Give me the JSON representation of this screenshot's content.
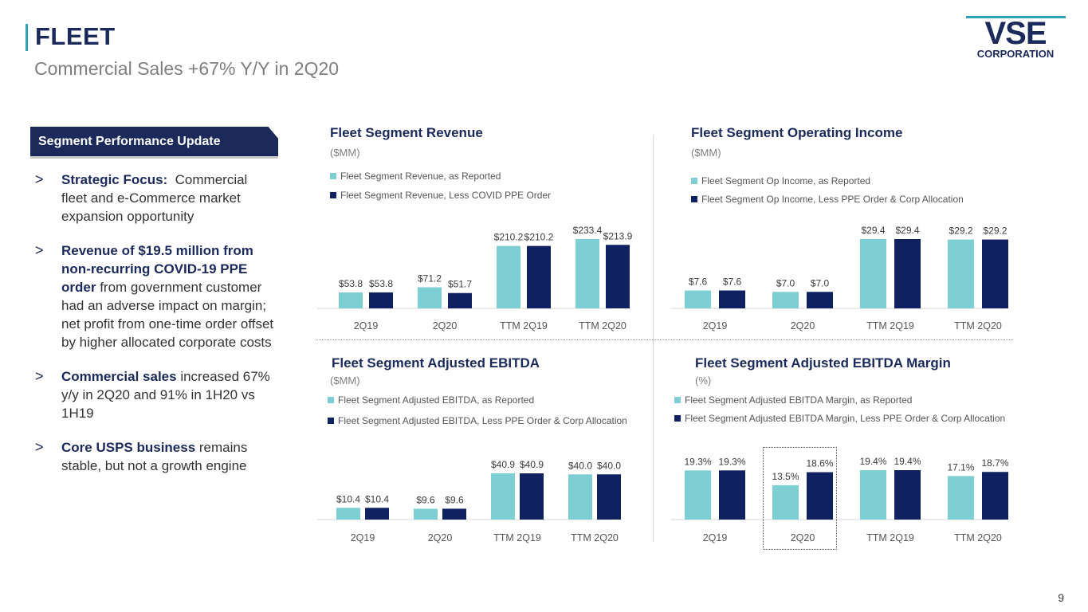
{
  "header": {
    "title": "FLEET",
    "subtitle": "Commercial Sales +67% Y/Y in 2Q20"
  },
  "logo": {
    "main": "VSE",
    "sub": "CORPORATION"
  },
  "panel": {
    "heading": "Segment Performance Update",
    "bullets": [
      {
        "marker": ">",
        "bold": "Strategic Focus:",
        "text": "  Commercial fleet and e-Commerce market expansion opportunity"
      },
      {
        "marker": ">",
        "bold": "Revenue of $19.5 million from non-recurring COVID-19 PPE order",
        "text": " from government customer had an adverse impact on margin; net profit from one-time order offset by higher allocated corporate costs"
      },
      {
        "marker": ">",
        "bold": "Commercial sales",
        "text": " increased 67% y/y in 2Q20 and 91% in 1H20 vs 1H19"
      },
      {
        "marker": ">",
        "bold": "Core USPS business",
        "text": " remains stable, but not a growth engine"
      }
    ]
  },
  "colors": {
    "reported": "#7ecfd4",
    "adjusted": "#0f2160",
    "navy": "#1b2a5b",
    "teal": "#2da3b4"
  },
  "chart_data": [
    {
      "type": "bar",
      "title": "Fleet Segment Revenue",
      "unit": "($MM)",
      "categories": [
        "2Q19",
        "2Q20",
        "TTM 2Q19",
        "TTM 2Q20"
      ],
      "series": [
        {
          "name": "Fleet Segment Revenue, as Reported",
          "values": [
            53.8,
            71.2,
            210.2,
            233.4
          ],
          "labels": [
            "$53.8",
            "$71.2",
            "$210.2",
            "$233.4"
          ]
        },
        {
          "name": "Fleet Segment Revenue, Less COVID PPE Order",
          "values": [
            53.8,
            51.7,
            210.2,
            213.9
          ],
          "labels": [
            "$53.8",
            "$51.7",
            "$210.2",
            "$213.9"
          ]
        }
      ],
      "ylim": [
        0,
        233.4
      ]
    },
    {
      "type": "bar",
      "title": "Fleet Segment Operating Income",
      "unit": "($MM)",
      "categories": [
        "2Q19",
        "2Q20",
        "TTM 2Q19",
        "TTM 2Q20"
      ],
      "series": [
        {
          "name": "Fleet Segment Op Income, as Reported",
          "values": [
            7.6,
            7.0,
            29.4,
            29.2
          ],
          "labels": [
            "$7.6",
            "$7.0",
            "$29.4",
            "$29.2"
          ]
        },
        {
          "name": "Fleet Segment Op Income, Less PPE Order & Corp Allocation",
          "values": [
            7.6,
            7.0,
            29.4,
            29.2
          ],
          "labels": [
            "$7.6",
            "$7.0",
            "$29.4",
            "$29.2"
          ]
        }
      ],
      "ylim": [
        0,
        29.4
      ]
    },
    {
      "type": "bar",
      "title": "Fleet Segment Adjusted EBITDA",
      "unit": "($MM)",
      "categories": [
        "2Q19",
        "2Q20",
        "TTM 2Q19",
        "TTM 2Q20"
      ],
      "series": [
        {
          "name": "Fleet Segment Adjusted EBITDA, as Reported",
          "values": [
            10.4,
            9.6,
            40.9,
            40.0
          ],
          "labels": [
            "$10.4",
            "$9.6",
            "$40.9",
            "$40.0"
          ]
        },
        {
          "name": "Fleet Segment Adjusted EBITDA, Less PPE Order & Corp Allocation",
          "values": [
            10.4,
            9.6,
            40.9,
            40.0
          ],
          "labels": [
            "$10.4",
            "$9.6",
            "$40.9",
            "$40.0"
          ]
        }
      ],
      "ylim": [
        0,
        40.9
      ]
    },
    {
      "type": "bar",
      "title": "Fleet Segment Adjusted EBITDA Margin",
      "unit": "(%)",
      "categories": [
        "2Q19",
        "2Q20",
        "TTM 2Q19",
        "TTM 2Q20"
      ],
      "series": [
        {
          "name": "Fleet Segment Adjusted EBITDA Margin, as Reported",
          "values": [
            19.3,
            13.5,
            19.4,
            17.1
          ],
          "labels": [
            "19.3%",
            "13.5%",
            "19.4%",
            "17.1%"
          ]
        },
        {
          "name": "Fleet Segment Adjusted EBITDA Margin, Less PPE Order & Corp Allocation",
          "values": [
            19.3,
            18.6,
            19.4,
            18.7
          ],
          "labels": [
            "19.3%",
            "18.6%",
            "19.4%",
            "18.7%"
          ]
        }
      ],
      "ylim": [
        0,
        19.4
      ]
    }
  ],
  "footer": {
    "page": "9"
  }
}
